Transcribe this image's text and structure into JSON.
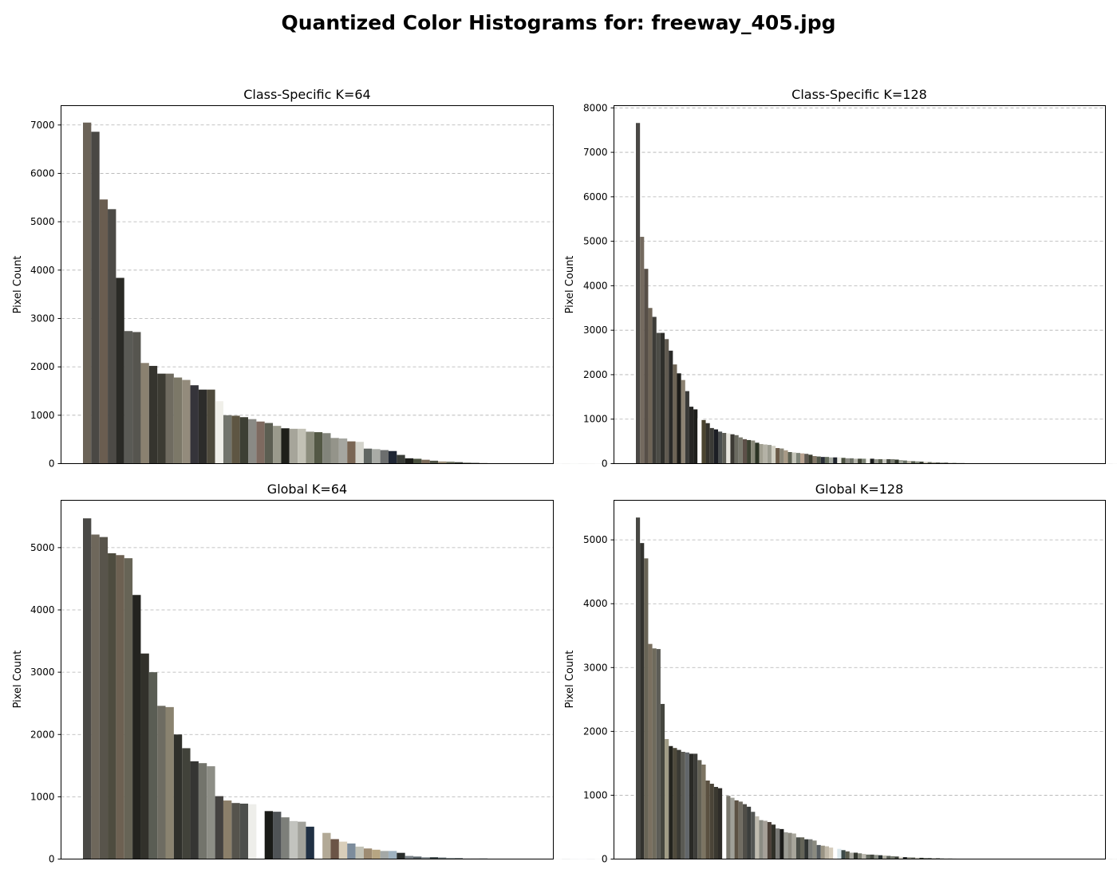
{
  "figure": {
    "title": "Quantized Color Histograms for: freeway_405.jpg"
  },
  "chart_data": [
    {
      "type": "bar",
      "title": "Class-Specific K=64",
      "xlabel": "",
      "ylabel": "Pixel Count",
      "ylim": [
        0,
        7400
      ],
      "yticks": [
        0,
        1000,
        2000,
        3000,
        4000,
        5000,
        6000,
        7000
      ],
      "grid": "y-dashed",
      "values": [
        7050,
        6860,
        5460,
        5260,
        3840,
        2740,
        2720,
        2080,
        2020,
        1860,
        1860,
        1780,
        1730,
        1620,
        1530,
        1530,
        1290,
        1000,
        990,
        960,
        920,
        870,
        840,
        780,
        730,
        720,
        720,
        660,
        650,
        630,
        530,
        520,
        460,
        450,
        310,
        300,
        280,
        260,
        180,
        110,
        100,
        80,
        60,
        45,
        40,
        30,
        20,
        15,
        12,
        8,
        6,
        4,
        3,
        2,
        1,
        1,
        1,
        1,
        1,
        1,
        1,
        1,
        1,
        1
      ],
      "colors": [
        "#6b6358",
        "#4a4844",
        "#6a5d50",
        "#4c4a46",
        "#2a2a26",
        "#5a5a55",
        "#56554f",
        "#8a8170",
        "#35342e",
        "#3c3b33",
        "#6f6b60",
        "#7c7868",
        "#938b7c",
        "#35343a",
        "#2c2c2a",
        "#4e4a3c",
        "#f0efe9",
        "#72746c",
        "#5e5643",
        "#3d3f34",
        "#8a8a85",
        "#7e6a60",
        "#5c5e52",
        "#9a9a8c",
        "#1e1f1a",
        "#a6a59a",
        "#c2c1b5",
        "#8c8d7d",
        "#535845",
        "#82847b",
        "#94948a",
        "#a5a6a0",
        "#7a6654",
        "#d3d3cb",
        "#606662",
        "#a9aba6",
        "#6c6e6e",
        "#1f2634",
        "#3a3d38",
        "#1a1c18",
        "#49503e",
        "#7a6a58",
        "#4e5244",
        "#9a8e78",
        "#6e7462",
        "#3a4038",
        "#5a5e54",
        "#2e302c",
        "#7e7c74",
        "#bcbcb4",
        "#8e9088",
        "#5c6058",
        "#444840",
        "#a0a098",
        "#6a6c64",
        "#30342c",
        "#d8d8d0",
        "#8a8c84",
        "#545850",
        "#7a7c74",
        "#3c4038",
        "#606258",
        "#909288",
        "#4c5048"
      ]
    },
    {
      "type": "bar",
      "title": "Class-Specific K=128",
      "xlabel": "",
      "ylabel": "Pixel Count",
      "ylim": [
        0,
        8050
      ],
      "yticks": [
        0,
        1000,
        2000,
        3000,
        4000,
        5000,
        6000,
        7000,
        8000
      ],
      "grid": "y-dashed",
      "values": [
        7660,
        5100,
        4380,
        3500,
        3300,
        2940,
        2940,
        2800,
        2540,
        2230,
        2030,
        1880,
        1630,
        1280,
        1220,
        1020,
        980,
        910,
        800,
        770,
        720,
        690,
        680,
        660,
        640,
        590,
        550,
        530,
        520,
        470,
        440,
        430,
        420,
        400,
        350,
        340,
        300,
        260,
        250,
        240,
        230,
        220,
        200,
        170,
        160,
        150,
        150,
        140,
        140,
        140,
        130,
        120,
        120,
        110,
        110,
        110,
        110,
        110,
        100,
        100,
        100,
        100,
        100,
        90,
        80,
        70,
        60,
        55,
        50,
        45,
        40,
        35,
        30,
        25,
        22,
        20,
        18,
        16,
        14,
        12,
        10,
        9,
        8,
        7,
        6,
        5,
        5,
        4,
        4,
        3,
        3,
        3,
        2,
        2,
        2,
        2,
        2,
        2,
        1,
        1,
        1,
        1,
        1,
        1,
        1,
        1,
        1,
        1,
        1,
        1,
        1,
        1,
        1,
        1,
        1,
        1,
        1,
        1,
        1,
        1,
        1,
        1,
        1,
        1,
        1,
        1,
        1,
        1
      ],
      "colors": [
        "#4a4845",
        "#746a5f",
        "#574f47",
        "#6e6456",
        "#3d3c38",
        "#4c4c46",
        "#2f2f2b",
        "#605a50",
        "#2a2a28",
        "#6d6455",
        "#1d1d1a",
        "#8c8272",
        "#3a3a38",
        "#262624",
        "#1e1f1c",
        "#fdfdfb",
        "#4b4530",
        "#33322c",
        "#3a3a36",
        "#1c1e24",
        "#4a4e4e",
        "#5e5e56",
        "#e8e6de",
        "#3c3a34",
        "#6a6a60",
        "#7a7a6e",
        "#5c5048",
        "#3c4232",
        "#888878",
        "#2c3424",
        "#a2a092",
        "#b4b2a6",
        "#9c9c90",
        "#d2d0c4",
        "#6a5a48",
        "#8a8678",
        "#a89a86",
        "#5e6254",
        "#c4c4b8",
        "#7e8478",
        "#b8a290",
        "#5e5850",
        "#3a3c2e",
        "#847868",
        "#505648",
        "#2a2e36",
        "#687060",
        "#a4a8a0",
        "#20242c",
        "#ecece4",
        "#4a5040",
        "#8c8c84",
        "#6c7066",
        "#b4b4aa",
        "#3e4234",
        "#7c8274",
        "#f4f4ee",
        "#1a1c1c",
        "#94968c",
        "#5a6050",
        "#c8c8c0",
        "#44483e",
        "#7a7e72",
        "#2e3428",
        "#a0a498",
        "#687064",
        "#b8b4a4",
        "#545a4c",
        "#889080",
        "#3a4034",
        "#d0ccbe",
        "#626858",
        "#9c9a8c",
        "#4a4e44",
        "#787c70",
        "#2c3026",
        "#b0aea2",
        "#606456",
        "#8c9082",
        "#383c32",
        "#c4c2b6",
        "#5a5e52",
        "#747870",
        "#e0dcd0",
        "#46483e",
        "#9a9e90",
        "#30342a",
        "#6e7266",
        "#a8a69a",
        "#52564a",
        "#84887c",
        "#3e4236",
        "#bcbab0",
        "#666a5e",
        "#949888",
        "#28302a",
        "#7c8076",
        "#585c50",
        "#dad6ca",
        "#404438",
        "#8a8e82",
        "#6a6e62",
        "#343830",
        "#acaa9e",
        "#5e6256",
        "#ccc8bc",
        "#4a4e42",
        "#7e8276",
        "#3a3e34",
        "#9ea294",
        "#646860",
        "#2a2e26",
        "#b6b2a6",
        "#565a4e",
        "#888c80",
        "#424638",
        "#a4a498",
        "#6e7266",
        "#30342c",
        "#c0bcb0",
        "#5c6054",
        "#949686",
        "#3c4036",
        "#787c72",
        "#e4e0d6",
        "#505448",
        "#8e9286",
        "#262a24"
      ]
    },
    {
      "type": "bar",
      "title": "Global K=64",
      "xlabel": "",
      "ylabel": "Pixel Count",
      "ylim": [
        0,
        5760
      ],
      "yticks": [
        0,
        1000,
        2000,
        3000,
        4000,
        5000
      ],
      "grid": "y-dashed",
      "values": [
        5470,
        5210,
        5170,
        4910,
        4880,
        4830,
        4240,
        3300,
        3000,
        2460,
        2440,
        2000,
        1780,
        1570,
        1540,
        1490,
        1010,
        940,
        900,
        890,
        880,
        1,
        770,
        760,
        670,
        610,
        600,
        520,
        1,
        420,
        320,
        280,
        250,
        200,
        170,
        150,
        130,
        130,
        100,
        50,
        40,
        30,
        30,
        25,
        20,
        15,
        10,
        8,
        10,
        5,
        4,
        3,
        2,
        1,
        1,
        1,
        1,
        1,
        1,
        1,
        1,
        1,
        1,
        1
      ],
      "colors": [
        "#4a4946",
        "#6e675b",
        "#58544b",
        "#4e4c3f",
        "#6d6152",
        "#676456",
        "#23231f",
        "#32312b",
        "#5a5d54",
        "#6e6c62",
        "#8a8370",
        "#2f302b",
        "#41423a",
        "#353533",
        "#73746c",
        "#8d8e86",
        "#444240",
        "#8b7f6a",
        "#55534c",
        "#4d4f4c",
        "#eeeeea",
        "#ffffff",
        "#1a1b18",
        "#4f5356",
        "#7d7f7a",
        "#c2c3be",
        "#a2a29b",
        "#203044",
        "#ffffff",
        "#b2a996",
        "#6b5446",
        "#d9ceba",
        "#7c8c9c",
        "#c1c1b5",
        "#9d8b72",
        "#b6a582",
        "#a4a8a6",
        "#9fb2c0",
        "#2a2e2c",
        "#7a8288",
        "#5a6468",
        "#8a9296",
        "#3a4446",
        "#6a7478",
        "#9aa2a4",
        "#4a5456",
        "#b0b6b8",
        "#2c3234",
        "#7e868a",
        "#c4c8ca",
        "#5e6669",
        "#a0a6a8",
        "#3e4648",
        "#8c9496",
        "#d0d4d6",
        "#6c7476",
        "#4e5658",
        "#b8bec0",
        "#2e3638",
        "#7a8284",
        "#a8aeb0",
        "#5a6264",
        "#c8ccce",
        "#3a4244"
      ]
    },
    {
      "type": "bar",
      "title": "Global K=128",
      "xlabel": "",
      "ylabel": "Pixel Count",
      "ylim": [
        0,
        5620
      ],
      "yticks": [
        0,
        1000,
        2000,
        3000,
        4000,
        5000
      ],
      "grid": "y-dashed",
      "values": [
        5350,
        4950,
        4710,
        3370,
        3300,
        3290,
        2430,
        1880,
        1770,
        1740,
        1710,
        1680,
        1670,
        1650,
        1650,
        1550,
        1480,
        1230,
        1180,
        1130,
        1110,
        1,
        990,
        960,
        920,
        900,
        860,
        820,
        740,
        670,
        610,
        600,
        580,
        540,
        480,
        470,
        420,
        410,
        400,
        340,
        340,
        310,
        310,
        290,
        220,
        210,
        200,
        180,
        1,
        160,
        140,
        120,
        100,
        100,
        90,
        80,
        70,
        70,
        65,
        60,
        55,
        50,
        45,
        40,
        35,
        30,
        28,
        25,
        22,
        20,
        18,
        16,
        14,
        12,
        10,
        9,
        8,
        7,
        6,
        5,
        4,
        4,
        3,
        3,
        2,
        2,
        2,
        1,
        1,
        1,
        1,
        1,
        1,
        1,
        1,
        1,
        1,
        1,
        1,
        1,
        1,
        1,
        1,
        1,
        1,
        1,
        1,
        1,
        1,
        1,
        1,
        1,
        1,
        1,
        1,
        1,
        1,
        1,
        1,
        1,
        1,
        1,
        1,
        1,
        1,
        1,
        1,
        1
      ],
      "colors": [
        "#484844",
        "#32322e",
        "#686456",
        "#7a7060",
        "#6e6a5c",
        "#5c5c56",
        "#45463f",
        "#a09c86",
        "#24241e",
        "#4e4a3c",
        "#3a3a34",
        "#5a5a54",
        "#62666a",
        "#2a2a26",
        "#3c3c38",
        "#626054",
        "#7c7462",
        "#5a5040",
        "#4a4438",
        "#3a3830",
        "#2e2c28",
        "#ffffff",
        "#7a786e",
        "#a0a098",
        "#5c5244",
        "#706c62",
        "#504e48",
        "#3c3e3c",
        "#545654",
        "#c0bcb0",
        "#8c8c84",
        "#a6a098",
        "#4c4038",
        "#303028",
        "#787874",
        "#1c1c1a",
        "#9c9c94",
        "#8c8a80",
        "#a8a69c",
        "#4a4e48",
        "#646458",
        "#303432",
        "#7a7c78",
        "#8a8a80",
        "#565c60",
        "#9a9484",
        "#c0b8a8",
        "#d4ccbc",
        "#ffffff",
        "#dce8ec",
        "#3c4a48",
        "#585a4c",
        "#a8a8a0",
        "#343830",
        "#7e8074",
        "#bab8ae",
        "#646a60",
        "#444840",
        "#8c9086",
        "#283030",
        "#b2b0a4",
        "#5a5e56",
        "#787c70",
        "#3e423a",
        "#e0dcd2",
        "#1e2224",
        "#949488",
        "#6a6e64",
        "#c8c6bc",
        "#34382e",
        "#868a80",
        "#525650",
        "#a6a89e",
        "#2c3028",
        "#7a7e74",
        "#bcbab0",
        "#484c42",
        "#9a9c92",
        "#646860",
        "#d8d4ca",
        "#3a3e36",
        "#8e9086",
        "#585c52",
        "#acaea4",
        "#2e3228",
        "#747870",
        "#c4c2b8",
        "#4e5248",
        "#989a90",
        "#383c34",
        "#6e7268",
        "#b4b2a8",
        "#42463c",
        "#868880",
        "#262a22",
        "#d0ccc2",
        "#5e6258",
        "#a0a298",
        "#343830",
        "#7c8076",
        "#c0beb4",
        "#4c5046",
        "#929488",
        "#2a2e26",
        "#6a6e64",
        "#b8b6ac",
        "#44483e",
        "#8a8c82",
        "#dcd8ce",
        "#3c4038",
        "#767a70",
        "#a8aaa0",
        "#30342c",
        "#62665c",
        "#c8c6bc",
        "#50544a",
        "#9c9e94",
        "#262a24",
        "#84867c",
        "#bebcb2",
        "#464a40",
        "#707468",
        "#e4e0d6",
        "#363a32",
        "#94968c",
        "#5a5e54",
        "#acaea4",
        "#2c3028"
      ]
    }
  ]
}
